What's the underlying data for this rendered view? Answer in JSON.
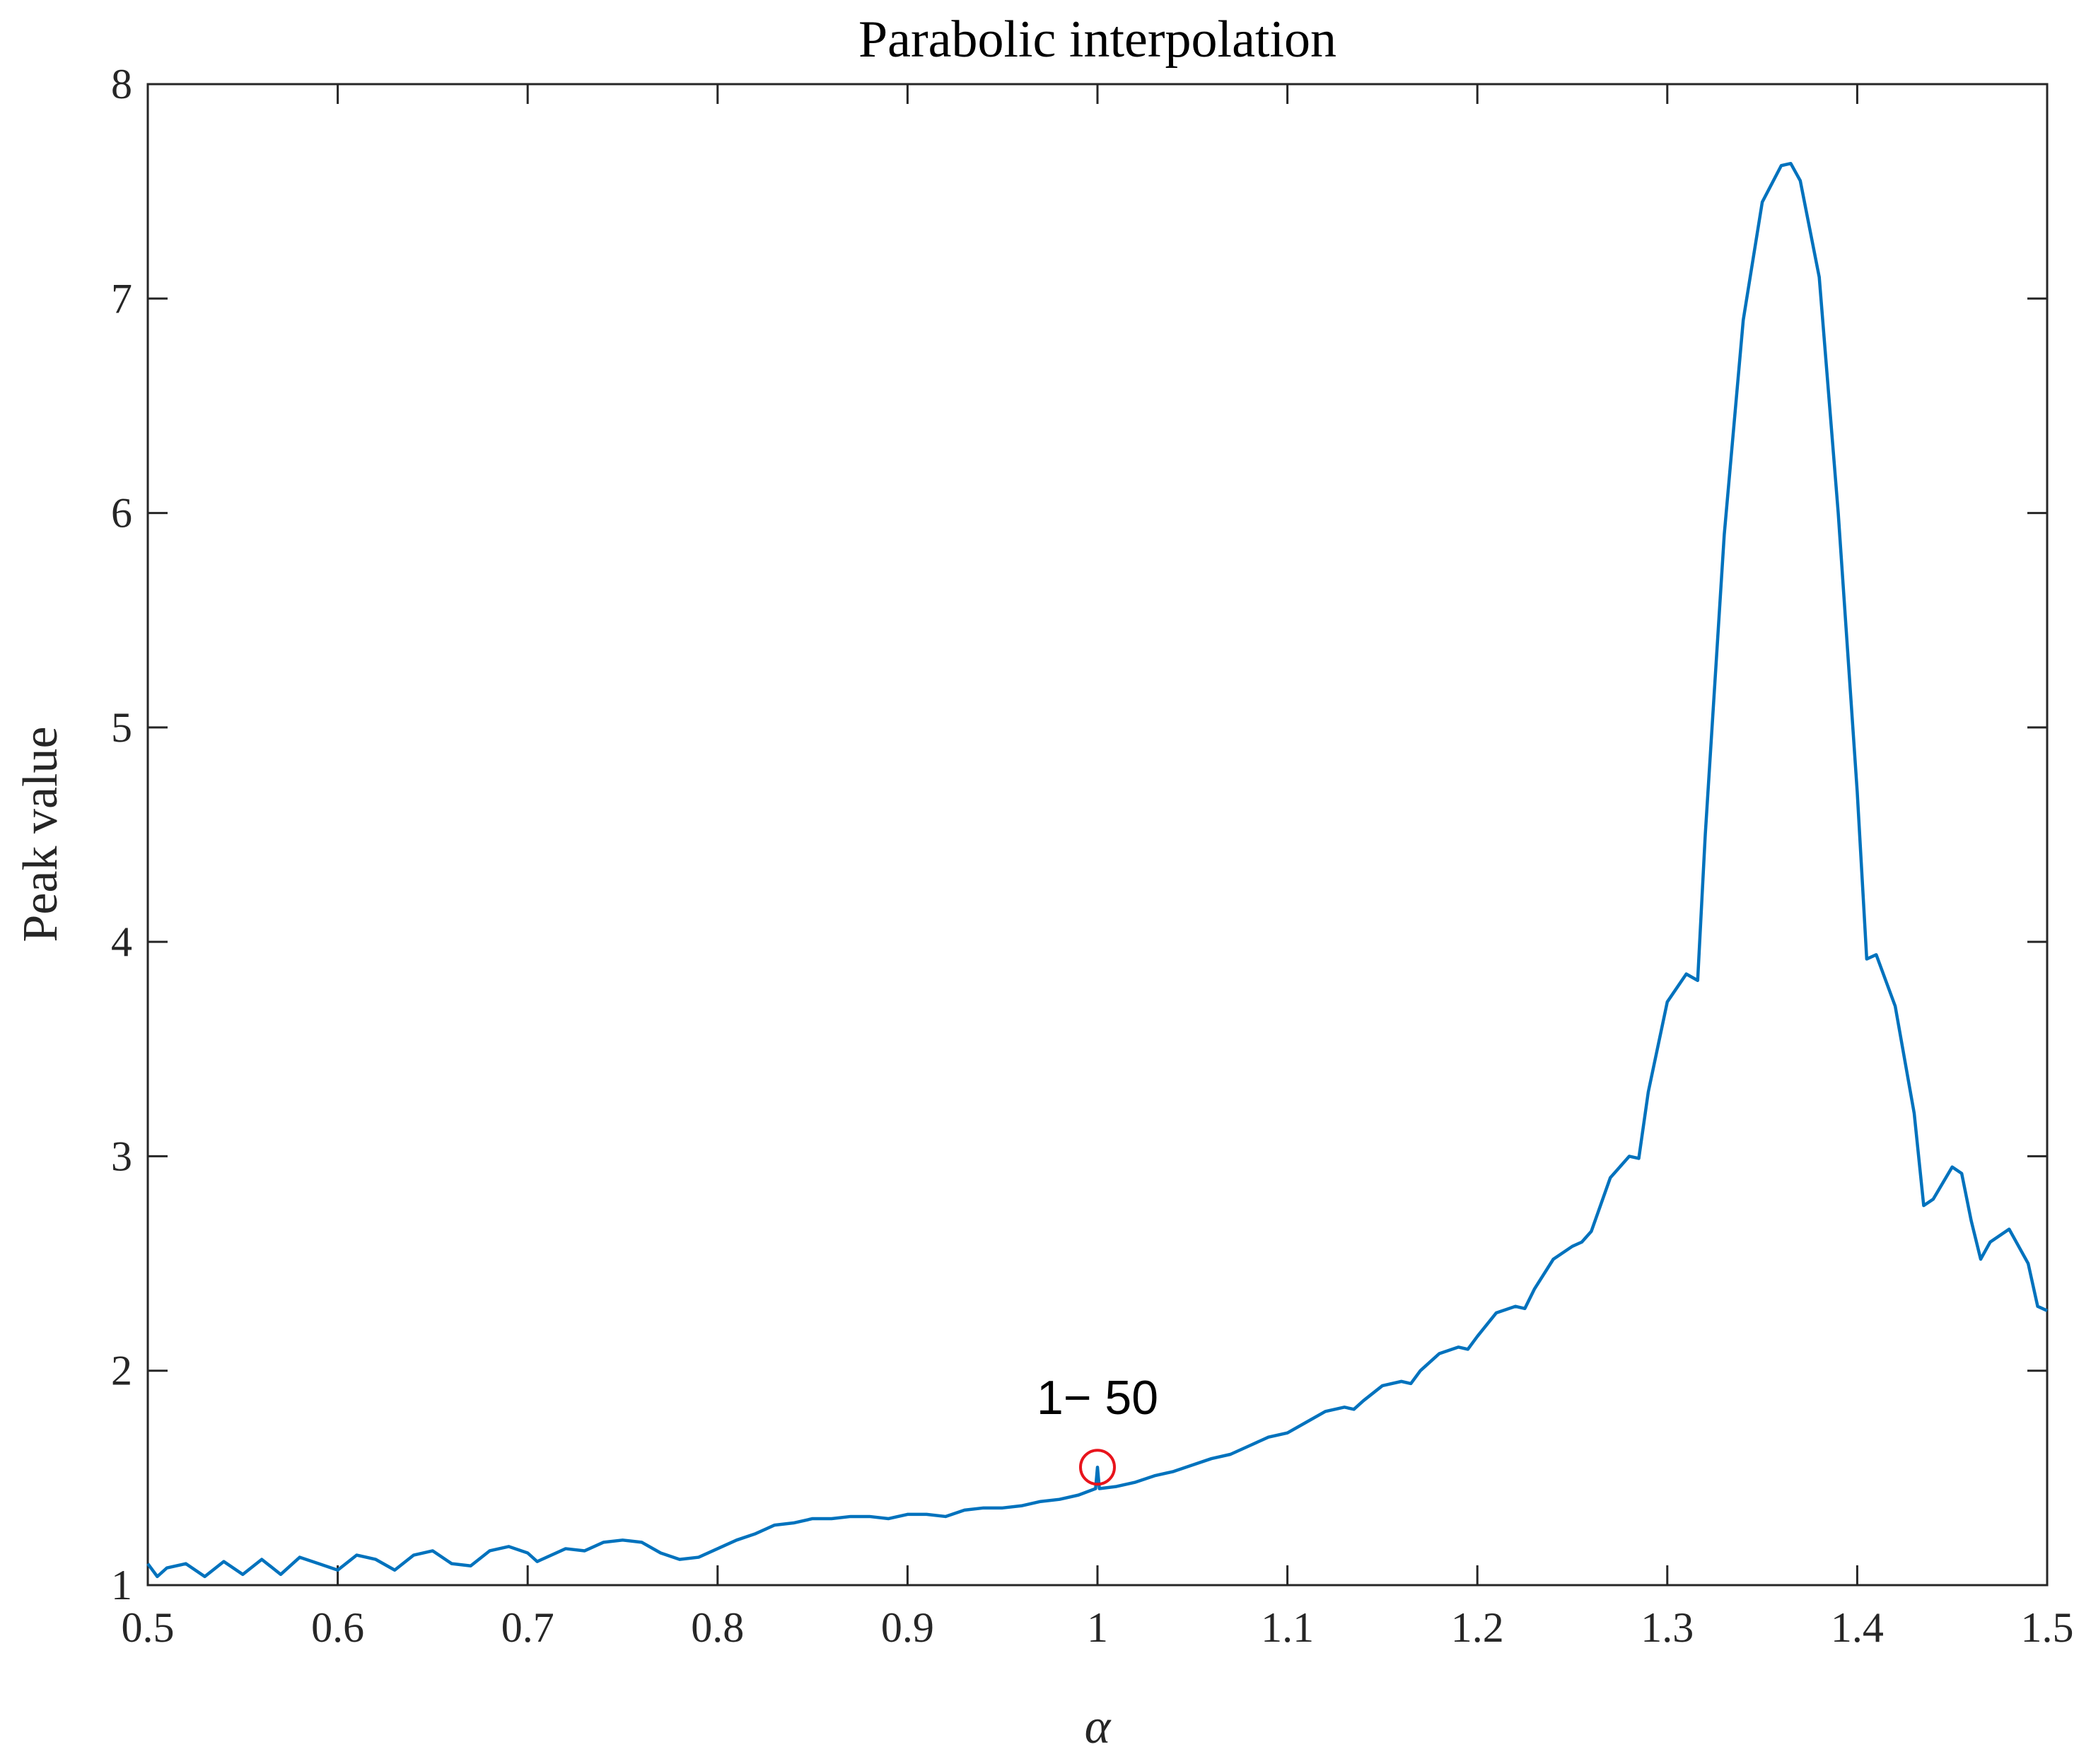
{
  "chart_data": {
    "type": "line",
    "title": "Parabolic interpolation",
    "x_label": "α",
    "y_label": "Peak value",
    "x": [
      0.5,
      0.505,
      0.51,
      0.52,
      0.53,
      0.54,
      0.55,
      0.56,
      0.57,
      0.58,
      0.59,
      0.6,
      0.61,
      0.62,
      0.63,
      0.64,
      0.65,
      0.66,
      0.67,
      0.68,
      0.69,
      0.7,
      0.705,
      0.72,
      0.73,
      0.74,
      0.75,
      0.76,
      0.77,
      0.78,
      0.79,
      0.8,
      0.81,
      0.82,
      0.83,
      0.84,
      0.85,
      0.86,
      0.87,
      0.88,
      0.89,
      0.9,
      0.91,
      0.92,
      0.93,
      0.94,
      0.95,
      0.96,
      0.97,
      0.98,
      0.99,
      0.999,
      1.0,
      1.001,
      1.01,
      1.02,
      1.03,
      1.04,
      1.05,
      1.06,
      1.07,
      1.08,
      1.09,
      1.1,
      1.11,
      1.12,
      1.13,
      1.135,
      1.14,
      1.15,
      1.16,
      1.165,
      1.17,
      1.18,
      1.19,
      1.195,
      1.2,
      1.21,
      1.22,
      1.225,
      1.23,
      1.24,
      1.25,
      1.255,
      1.26,
      1.27,
      1.28,
      1.285,
      1.29,
      1.3,
      1.31,
      1.316,
      1.32,
      1.33,
      1.34,
      1.35,
      1.36,
      1.365,
      1.37,
      1.38,
      1.39,
      1.4,
      1.405,
      1.41,
      1.42,
      1.43,
      1.435,
      1.44,
      1.45,
      1.455,
      1.46,
      1.465,
      1.47,
      1.48,
      1.49,
      1.495,
      1.5
    ],
    "series": [
      {
        "name": "Peak value",
        "color": "#0072bd",
        "values": [
          1.1,
          1.04,
          1.08,
          1.1,
          1.04,
          1.11,
          1.05,
          1.12,
          1.05,
          1.13,
          1.1,
          1.07,
          1.14,
          1.12,
          1.07,
          1.14,
          1.16,
          1.1,
          1.09,
          1.16,
          1.18,
          1.15,
          1.11,
          1.17,
          1.16,
          1.2,
          1.21,
          1.2,
          1.15,
          1.12,
          1.13,
          1.17,
          1.21,
          1.24,
          1.28,
          1.29,
          1.31,
          1.31,
          1.32,
          1.32,
          1.31,
          1.33,
          1.33,
          1.32,
          1.35,
          1.36,
          1.36,
          1.37,
          1.39,
          1.4,
          1.42,
          1.45,
          1.55,
          1.45,
          1.46,
          1.48,
          1.51,
          1.53,
          1.56,
          1.59,
          1.61,
          1.65,
          1.69,
          1.71,
          1.76,
          1.81,
          1.83,
          1.82,
          1.86,
          1.93,
          1.95,
          1.94,
          2.0,
          2.08,
          2.11,
          2.1,
          2.16,
          2.27,
          2.3,
          2.29,
          2.38,
          2.52,
          2.58,
          2.6,
          2.65,
          2.9,
          3.0,
          2.99,
          3.3,
          3.72,
          3.85,
          3.82,
          4.5,
          5.9,
          6.9,
          7.45,
          7.62,
          7.63,
          7.55,
          7.1,
          6.0,
          4.7,
          3.92,
          3.94,
          3.7,
          3.2,
          2.77,
          2.8,
          2.95,
          2.92,
          2.7,
          2.52,
          2.6,
          2.66,
          2.5,
          2.3,
          2.28
        ]
      }
    ],
    "xlim": [
      0.5,
      1.5
    ],
    "xticks": [
      0.5,
      0.6,
      0.7,
      0.8,
      0.9,
      1,
      1.1,
      1.2,
      1.3,
      1.4,
      1.5
    ],
    "ylim": [
      1,
      8
    ],
    "yticks": [
      1,
      2,
      3,
      4,
      5,
      6,
      7,
      8
    ],
    "grid": false,
    "annotation": {
      "text": "1− 50",
      "x": 1,
      "y": 1.55,
      "color": "#e8141c"
    }
  }
}
